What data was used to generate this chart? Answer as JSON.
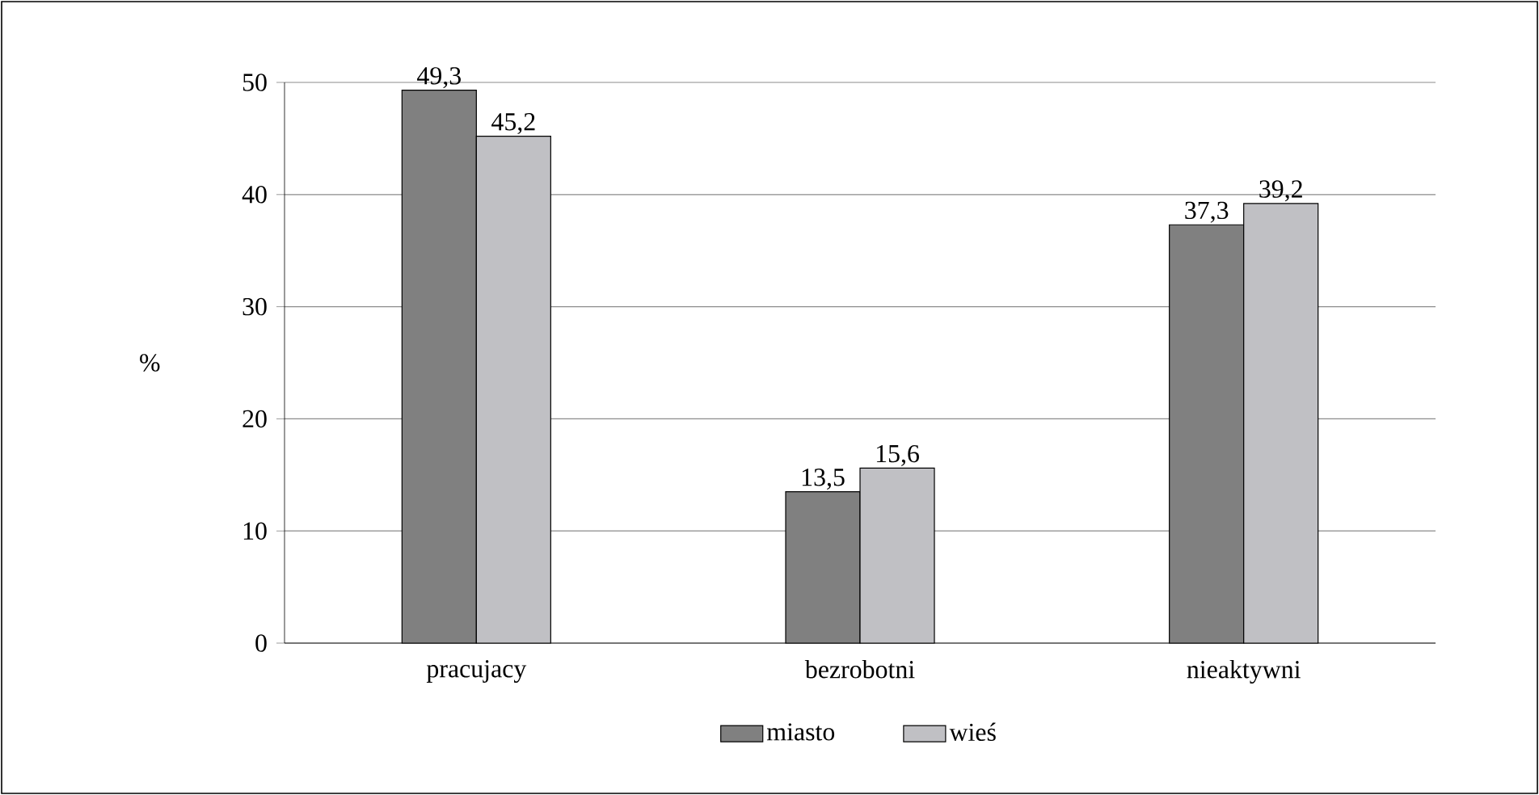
{
  "chart_data": {
    "type": "bar",
    "ylabel": "%",
    "categories": [
      "pracujacy",
      "bezrobotni",
      "nieaktywni"
    ],
    "series": [
      {
        "name": "miasto",
        "color": "#808080",
        "values": [
          49.3,
          13.5,
          37.3
        ],
        "value_labels": [
          "49,3",
          "13,5",
          "37,3"
        ]
      },
      {
        "name": "wieś",
        "color": "#c0c0c4",
        "values": [
          45.2,
          15.6,
          39.2
        ],
        "value_labels": [
          "45,2",
          "15,6",
          "39,2"
        ]
      }
    ],
    "ylim": [
      0,
      50
    ],
    "yticks": [
      0,
      10,
      20,
      30,
      40,
      50
    ],
    "grid": "y",
    "legend": "bottom"
  }
}
